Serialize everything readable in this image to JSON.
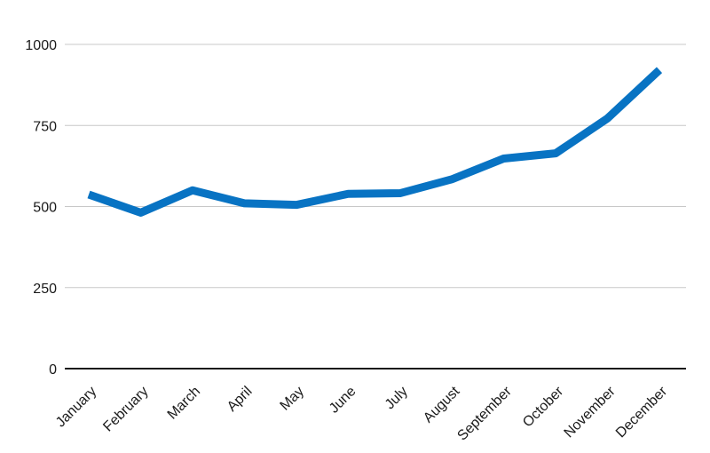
{
  "chart_data": {
    "type": "line",
    "title": "",
    "xlabel": "",
    "ylabel": "",
    "categories": [
      "January",
      "February",
      "March",
      "April",
      "May",
      "June",
      "July",
      "August",
      "September",
      "October",
      "November",
      "December"
    ],
    "series": [
      {
        "values": [
          537,
          481,
          550,
          510,
          505,
          539,
          541,
          584,
          648,
          664,
          772,
          921
        ],
        "color": "#0873c3"
      }
    ],
    "ylim": [
      0,
      1000
    ],
    "yticks": [
      0,
      250,
      500,
      750,
      1000
    ],
    "ytick_labels": [
      "0",
      "250",
      "500",
      "750",
      "1000"
    ],
    "grid": "horizontal",
    "legend": "none"
  }
}
